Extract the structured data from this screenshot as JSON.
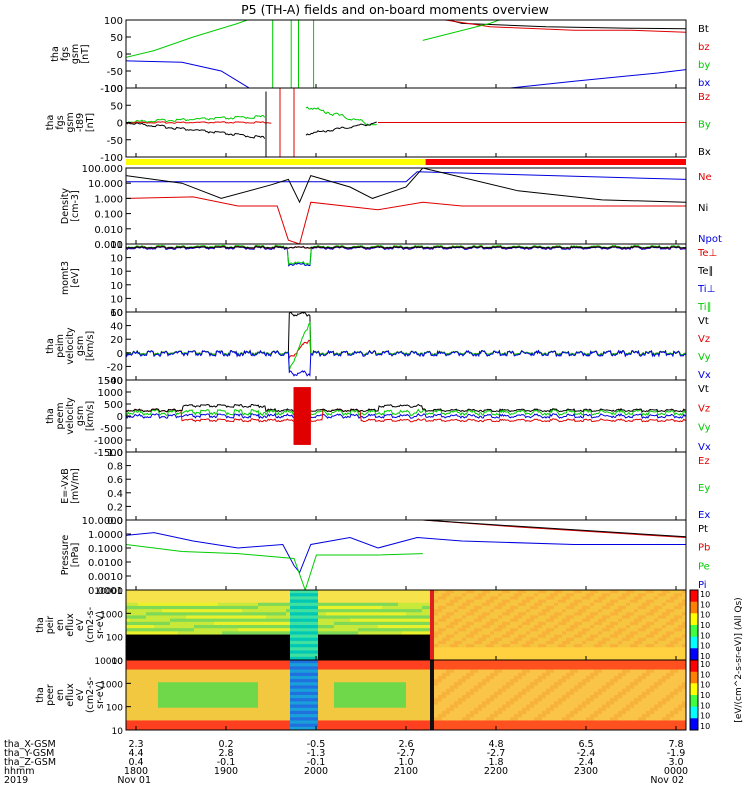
{
  "title": "P5 (TH-A) fields and on-board moments overview",
  "colors": {
    "black": "#000000",
    "red": "#e00000",
    "green": "#00cc00",
    "blue": "#0000e0",
    "yellow": "#ffff00",
    "barred": "#ff0000"
  },
  "time_axis": {
    "tick_labels": [
      "1800",
      "1900",
      "2000",
      "2100",
      "2200",
      "2300",
      "0000"
    ],
    "date_labels": [
      "Nov 01",
      "Nov 02"
    ],
    "row_names": [
      "tha_X-GSM",
      "tha_Y-GSM",
      "tha_Z-GSM",
      "hhmm",
      "2019"
    ],
    "rows": [
      [
        "2.3",
        "0.2",
        "-0.5",
        "2.6",
        "4.8",
        "6.5",
        "7.8"
      ],
      [
        "4.4",
        "2.8",
        "-1.3",
        "-2.7",
        "-2.7",
        "-2.4",
        "-1.9"
      ],
      [
        "0.4",
        "-0.1",
        "-0.1",
        "1.0",
        "1.8",
        "2.4",
        "3.0"
      ]
    ]
  },
  "chart_data": [
    {
      "type": "line",
      "panel": "fgs_gsm",
      "ylabel": [
        "tha",
        "fgs",
        "gsm",
        "[nT]"
      ],
      "ylim": [
        -100,
        100
      ],
      "yticks": [
        "100",
        "50",
        "0",
        "-50",
        "-100"
      ],
      "series": [
        {
          "name": "Bt",
          "color": "#000000"
        },
        {
          "name": "bz",
          "color": "#e00000"
        },
        {
          "name": "by",
          "color": "#00cc00"
        },
        {
          "name": "bx",
          "color": "#0000e0"
        }
      ]
    },
    {
      "type": "line",
      "panel": "fgs_gsm_dlp",
      "ylabel": [
        "tha",
        "fgs",
        "gsm",
        "-t89",
        "[nT]"
      ],
      "ylim": [
        -120,
        120
      ],
      "yticks": [
        "100",
        "50",
        "0",
        "-50",
        "-100"
      ],
      "series": [
        {
          "name": "Bz",
          "color": "#e00000"
        },
        {
          "name": "By",
          "color": "#00cc00"
        },
        {
          "name": "Bx",
          "color": "#000000"
        }
      ]
    },
    {
      "type": "line",
      "panel": "density",
      "ylabel": [
        "Density",
        "[cm-3]"
      ],
      "yscale": "log",
      "yticks": [
        "100.000",
        "10.000",
        "1.000",
        "0.100",
        "0.010",
        "0.001"
      ],
      "series": [
        {
          "name": "Ne",
          "color": "#e00000"
        },
        {
          "name": "Ni",
          "color": "#000000"
        },
        {
          "name": "Npot",
          "color": "#0000e0"
        }
      ]
    },
    {
      "type": "line",
      "panel": "temperature",
      "ylabel": [
        "momt3",
        "[eV]"
      ],
      "yscale": "log",
      "yticks": [
        "10",
        "10",
        "10",
        "10",
        "10",
        "10"
      ],
      "series": [
        {
          "name": "Te⊥",
          "color": "#e00000"
        },
        {
          "name": "Te∥",
          "color": "#000000"
        },
        {
          "name": "Ti⊥",
          "color": "#0000e0"
        },
        {
          "name": "Ti∥",
          "color": "#00cc00"
        }
      ]
    },
    {
      "type": "line",
      "panel": "peim_velocity",
      "ylabel": [
        "tha",
        "peim",
        "velocity",
        "gsm",
        "[km/s]"
      ],
      "ylim": [
        -40,
        60
      ],
      "yticks": [
        "60",
        "40",
        "20",
        "0",
        "-20",
        "-40"
      ],
      "series": [
        {
          "name": "Vt",
          "color": "#000000"
        },
        {
          "name": "Vz",
          "color": "#e00000"
        },
        {
          "name": "Vy",
          "color": "#00cc00"
        },
        {
          "name": "Vx",
          "color": "#0000e0"
        }
      ]
    },
    {
      "type": "line",
      "panel": "peem_velocity",
      "ylabel": [
        "tha",
        "peem",
        "velocity",
        "gsm",
        "[km/s]"
      ],
      "ylim": [
        -1500,
        1500
      ],
      "yticks": [
        "1500",
        "1000",
        "500",
        "0",
        "-500",
        "-1000",
        "-1500"
      ],
      "series": [
        {
          "name": "Vt",
          "color": "#000000"
        },
        {
          "name": "Vz",
          "color": "#e00000"
        },
        {
          "name": "Vy",
          "color": "#00cc00"
        },
        {
          "name": "Vx",
          "color": "#0000e0"
        }
      ]
    },
    {
      "type": "line",
      "panel": "efield",
      "ylabel": [
        "E=-VxB",
        "[mV/m]"
      ],
      "ylim": [
        0,
        1
      ],
      "yticks": [
        "1.0",
        "0.8",
        "0.6",
        "0.4",
        "0.2",
        "0.0"
      ],
      "series": [
        {
          "name": "Ez",
          "color": "#e00000"
        },
        {
          "name": "Ey",
          "color": "#00cc00"
        },
        {
          "name": "Ex",
          "color": "#0000e0"
        }
      ]
    },
    {
      "type": "line",
      "panel": "pressure",
      "ylabel": [
        "Pressure",
        "[nPa]"
      ],
      "yscale": "log",
      "yticks": [
        "10.0000",
        "1.0000",
        "0.1000",
        "0.0100",
        "0.0010",
        "0.0001"
      ],
      "series": [
        {
          "name": "Pt",
          "color": "#000000"
        },
        {
          "name": "Pb",
          "color": "#e00000"
        },
        {
          "name": "Pe",
          "color": "#00cc00"
        },
        {
          "name": "Pi",
          "color": "#0000e0"
        }
      ]
    },
    {
      "type": "heatmap",
      "panel": "peir_eflux",
      "ylabel": [
        "tha",
        "peir",
        "en",
        "eflux",
        "eV",
        "(cm2-s-",
        "sr-eV)"
      ],
      "yscale": "log",
      "yticks": [
        "10000",
        "1000",
        "100",
        "10"
      ]
    },
    {
      "type": "heatmap",
      "panel": "peer_eflux",
      "ylabel": [
        "tha",
        "peer",
        "en",
        "eflux",
        "eV",
        "(cm2-s-",
        "sr-eV)"
      ],
      "yscale": "log",
      "yticks": [
        "10000",
        "1000",
        "100",
        "10"
      ]
    }
  ],
  "colorbar": {
    "label": "[eV/(cm^2-s-sr-eV)] (All Qs)",
    "ticks": [
      "10",
      "10",
      "10",
      "10",
      "10",
      "10",
      "10"
    ]
  }
}
